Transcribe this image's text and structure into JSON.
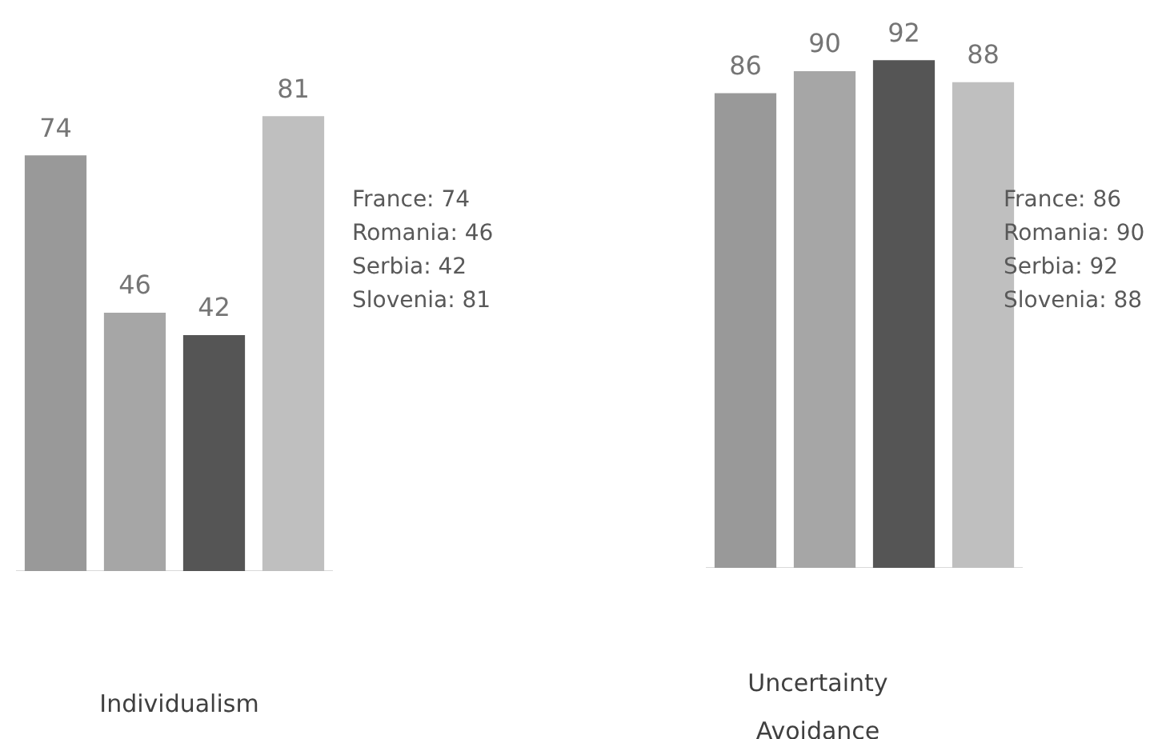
{
  "chart_data": [
    {
      "type": "bar",
      "title": "Individualism",
      "categories": [
        null,
        null,
        null,
        null
      ],
      "values": [
        74,
        46,
        42,
        81
      ],
      "colors": [
        "#999999",
        "#a6a6a6",
        "#555555",
        "#bfbfbf"
      ],
      "data_labels": true,
      "tick_labels": false,
      "grid": false,
      "annotations": [
        "France: 74",
        "Romania: 46",
        "Serbia: 42",
        "Slovenia: 81"
      ]
    },
    {
      "type": "bar",
      "title": "Uncertainty Avoidance",
      "categories": [
        null,
        null,
        null,
        null
      ],
      "values": [
        86,
        90,
        92,
        88
      ],
      "colors": [
        "#999999",
        "#a6a6a6",
        "#555555",
        "#bfbfbf"
      ],
      "data_labels": true,
      "tick_labels": false,
      "grid": false,
      "annotations": [
        "France: 86",
        "Romania: 90",
        "Serbia: 92",
        "Slovenia: 88"
      ]
    }
  ]
}
